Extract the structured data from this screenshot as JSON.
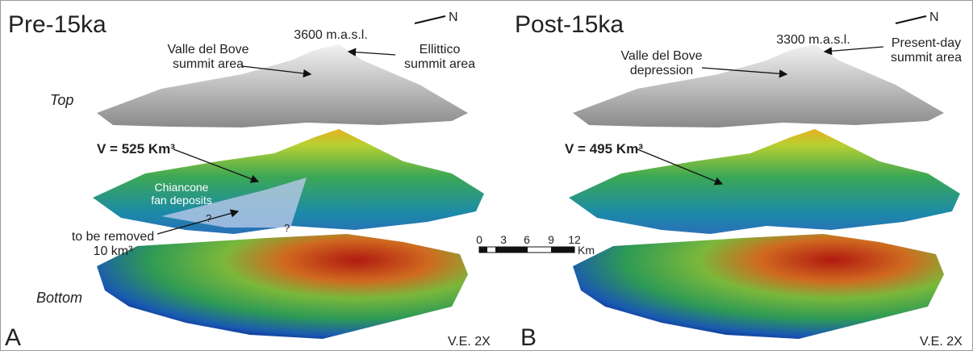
{
  "panels": [
    {
      "title": "Pre-15ka",
      "letter": "A",
      "north": "N",
      "elevation": "3600 m.a.s.l.",
      "label_left": [
        "Valle del Bove",
        "summit area"
      ],
      "label_right": [
        "Ellittico",
        "summit area"
      ],
      "top": "Top",
      "bottom": "Bottom",
      "volume": "V = 525 Km³",
      "fan": [
        "Chiancone",
        "fan deposits"
      ],
      "question": "?",
      "removed": [
        "to be removed",
        "10 km³"
      ],
      "ve": "V.E. 2X"
    },
    {
      "title": "Post-15ka",
      "letter": "B",
      "north": "N",
      "elevation": "3300 m.a.s.l.",
      "label_left": [
        "Valle del Bove",
        "depression"
      ],
      "label_right": [
        "Present-day",
        "summit area"
      ],
      "volume": "V = 495 Km³",
      "ve": "V.E. 2X"
    }
  ],
  "scale_bar": {
    "ticks": [
      "0",
      "3",
      "6",
      "9",
      "12"
    ],
    "unit": "Km"
  }
}
